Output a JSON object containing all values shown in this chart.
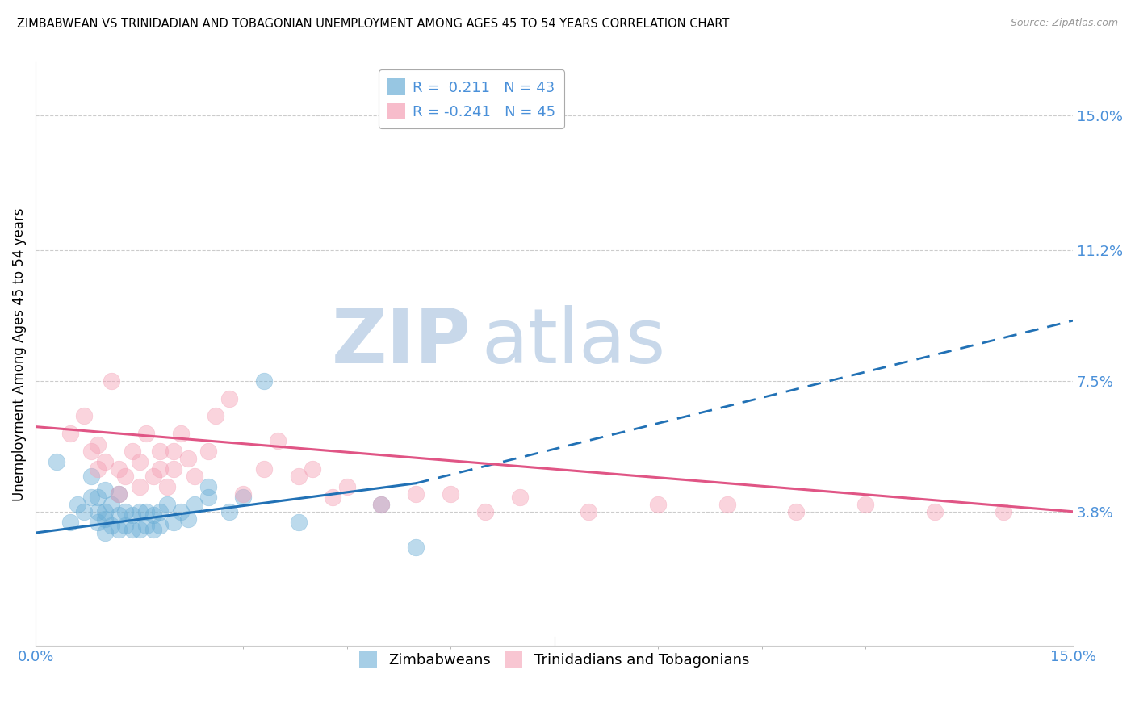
{
  "title": "ZIMBABWEAN VS TRINIDADIAN AND TOBAGONIAN UNEMPLOYMENT AMONG AGES 45 TO 54 YEARS CORRELATION CHART",
  "source": "Source: ZipAtlas.com",
  "ylabel": "Unemployment Among Ages 45 to 54 years",
  "y_tick_labels_right": [
    "3.8%",
    "7.5%",
    "11.2%",
    "15.0%"
  ],
  "y_tick_values": [
    0.038,
    0.075,
    0.112,
    0.15
  ],
  "xlim": [
    0.0,
    0.15
  ],
  "ylim": [
    0.0,
    0.165
  ],
  "legend_entries": [
    {
      "label": "R =  0.211   N = 43",
      "color": "#6baed6"
    },
    {
      "label": "R = -0.241   N = 45",
      "color": "#f4a0b5"
    }
  ],
  "legend_bottom": [
    "Zimbabweans",
    "Trinidadians and Tobagonians"
  ],
  "legend_bottom_colors": [
    "#6baed6",
    "#f4a0b5"
  ],
  "blue_scatter_x": [
    0.003,
    0.005,
    0.006,
    0.007,
    0.008,
    0.008,
    0.009,
    0.009,
    0.009,
    0.01,
    0.01,
    0.01,
    0.01,
    0.011,
    0.011,
    0.012,
    0.012,
    0.012,
    0.013,
    0.013,
    0.014,
    0.014,
    0.015,
    0.015,
    0.016,
    0.016,
    0.017,
    0.017,
    0.018,
    0.018,
    0.019,
    0.02,
    0.021,
    0.022,
    0.023,
    0.025,
    0.025,
    0.028,
    0.03,
    0.033,
    0.038,
    0.05,
    0.055
  ],
  "blue_scatter_y": [
    0.052,
    0.035,
    0.04,
    0.038,
    0.042,
    0.048,
    0.035,
    0.038,
    0.042,
    0.032,
    0.036,
    0.038,
    0.044,
    0.034,
    0.04,
    0.033,
    0.037,
    0.043,
    0.034,
    0.038,
    0.033,
    0.037,
    0.033,
    0.038,
    0.034,
    0.038,
    0.033,
    0.037,
    0.034,
    0.038,
    0.04,
    0.035,
    0.038,
    0.036,
    0.04,
    0.042,
    0.045,
    0.038,
    0.042,
    0.075,
    0.035,
    0.04,
    0.028
  ],
  "pink_scatter_x": [
    0.005,
    0.007,
    0.008,
    0.009,
    0.009,
    0.01,
    0.011,
    0.012,
    0.012,
    0.013,
    0.014,
    0.015,
    0.015,
    0.016,
    0.017,
    0.018,
    0.018,
    0.019,
    0.02,
    0.02,
    0.021,
    0.022,
    0.023,
    0.025,
    0.026,
    0.028,
    0.03,
    0.033,
    0.035,
    0.038,
    0.04,
    0.043,
    0.045,
    0.05,
    0.055,
    0.06,
    0.065,
    0.07,
    0.08,
    0.09,
    0.1,
    0.11,
    0.12,
    0.13,
    0.14
  ],
  "pink_scatter_y": [
    0.06,
    0.065,
    0.055,
    0.05,
    0.057,
    0.052,
    0.075,
    0.043,
    0.05,
    0.048,
    0.055,
    0.045,
    0.052,
    0.06,
    0.048,
    0.05,
    0.055,
    0.045,
    0.05,
    0.055,
    0.06,
    0.053,
    0.048,
    0.055,
    0.065,
    0.07,
    0.043,
    0.05,
    0.058,
    0.048,
    0.05,
    0.042,
    0.045,
    0.04,
    0.043,
    0.043,
    0.038,
    0.042,
    0.038,
    0.04,
    0.04,
    0.038,
    0.04,
    0.038,
    0.038
  ],
  "blue_solid_line_x": [
    0.0,
    0.055
  ],
  "blue_solid_line_y": [
    0.032,
    0.046
  ],
  "blue_dashed_line_x": [
    0.055,
    0.15
  ],
  "blue_dashed_line_y": [
    0.046,
    0.092
  ],
  "pink_line_x": [
    0.0,
    0.15
  ],
  "pink_line_y": [
    0.062,
    0.038
  ],
  "blue_color": "#6baed6",
  "pink_color": "#f4a0b5",
  "blue_line_color": "#2171b5",
  "pink_line_color": "#e05585",
  "watermark_zip": "ZIP",
  "watermark_atlas": "atlas",
  "watermark_color": "#c8d8ea",
  "background_color": "#ffffff",
  "grid_color": "#cccccc"
}
